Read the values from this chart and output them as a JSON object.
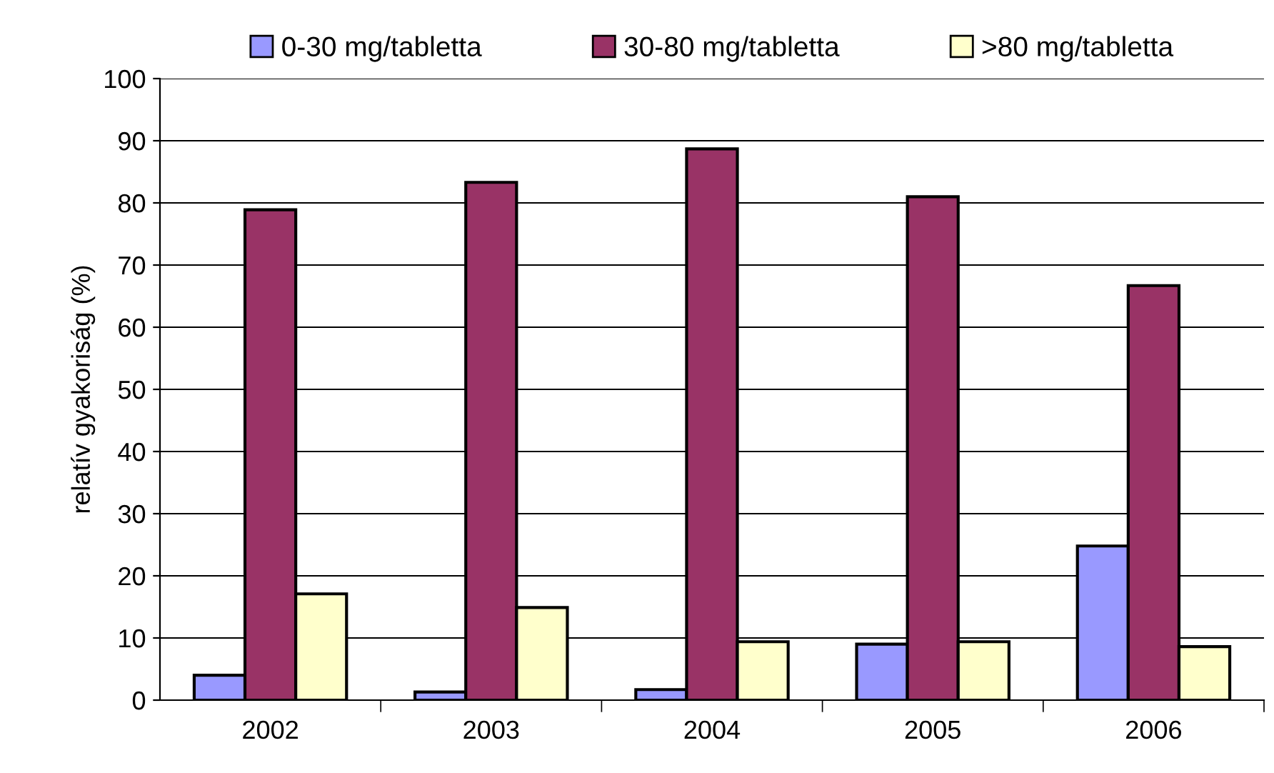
{
  "chart_data": {
    "type": "bar",
    "ylabel": "relatív gyakoriság (%)",
    "categories": [
      "2002",
      "2003",
      "2004",
      "2005",
      "2006"
    ],
    "series": [
      {
        "name": "0-30 mg/tabletta",
        "color": "#9999ff",
        "values": [
          4.0,
          1.3,
          1.7,
          9.0,
          24.8
        ]
      },
      {
        "name": "30-80 mg/tabletta",
        "color": "#993366",
        "values": [
          78.9,
          83.3,
          88.7,
          81.0,
          66.7
        ]
      },
      {
        "name": ">80 mg/tabletta",
        "color": "#ffffcc",
        "values": [
          17.1,
          14.9,
          9.4,
          9.4,
          8.6
        ]
      }
    ],
    "ylim": [
      0,
      100
    ],
    "yticks": [
      0,
      10,
      20,
      30,
      40,
      50,
      60,
      70,
      80,
      90,
      100
    ],
    "grid": "y",
    "legend": "top"
  }
}
